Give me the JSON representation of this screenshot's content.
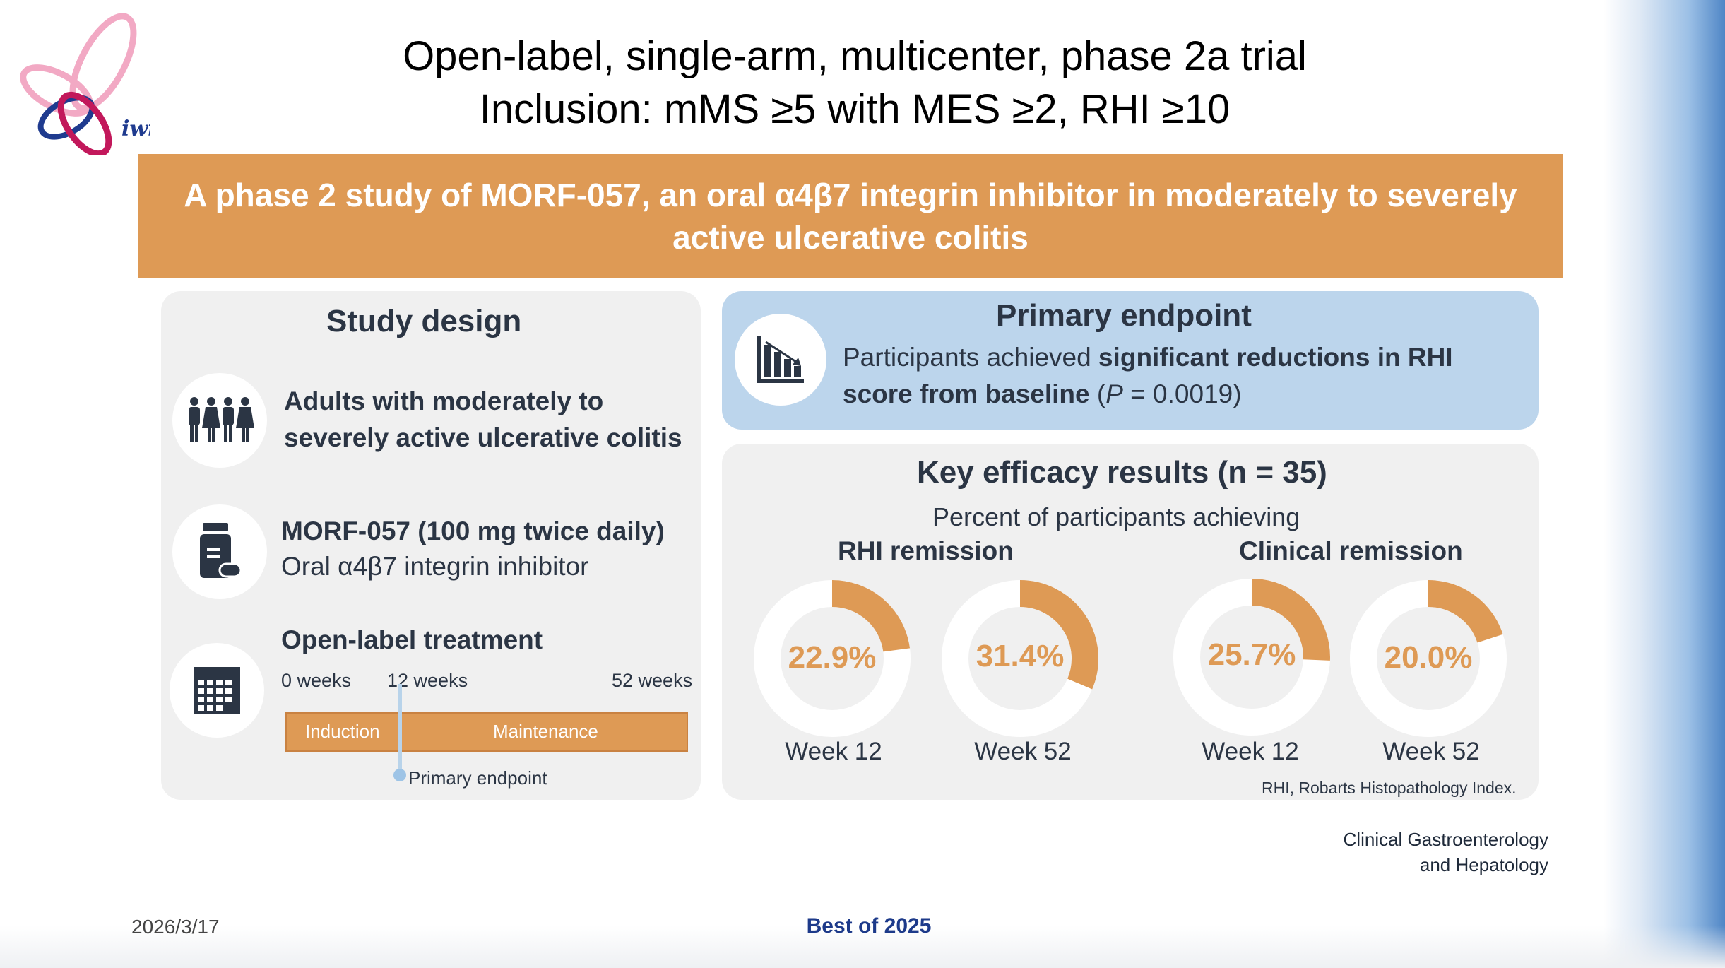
{
  "slide": {
    "title_line1": "Open-label, single-arm, multicenter, phase 2a trial",
    "title_line2": "Inclusion: mMS ≥5 with MES ≥2, RHI ≥10"
  },
  "banner": {
    "text": "A phase 2 study of MORF-057, an oral α4β7 integrin inhibitor in moderately to severely active ulcerative colitis"
  },
  "study_design": {
    "heading": "Study design",
    "population_line1": "Adults with moderately to",
    "population_line2": "severely active ulcerative colitis",
    "drug_line1": "MORF-057 (100 mg twice daily)",
    "drug_line2": "Oral α4β7 integrin inhibitor",
    "treatment_heading": "Open-label treatment",
    "timeline": {
      "week0": "0 weeks",
      "week12": "12 weeks",
      "week52": "52 weeks",
      "phase1": "Induction",
      "phase2": "Maintenance",
      "marker": "Primary endpoint"
    }
  },
  "primary_endpoint": {
    "heading": "Primary endpoint",
    "text_prefix": "Participants achieved ",
    "text_bold1": "significant reductions in RHI",
    "text_bold2": "score from baseline",
    "text_paren_open": " (",
    "p_label": "P",
    "p_value": " = 0.0019)"
  },
  "key_results": {
    "heading": "Key efficacy results (n = 35)",
    "subheading": "Percent of participants achieving",
    "group1": "RHI remission",
    "group2": "Clinical remission",
    "donuts": [
      {
        "percent": 22.9,
        "label": "22.9%",
        "week": "Week 12"
      },
      {
        "percent": 31.4,
        "label": "31.4%",
        "week": "Week 52"
      },
      {
        "percent": 25.7,
        "label": "25.7%",
        "week": "Week 12"
      },
      {
        "percent": 20.0,
        "label": "20.0%",
        "week": "Week 52"
      }
    ],
    "footnote": "RHI, Robarts Histopathology Index."
  },
  "source": {
    "line1": "Clinical Gastroenterology",
    "line2": "and Hepatology"
  },
  "footer": {
    "date": "2026/3/17",
    "center": "Best of 2025"
  },
  "logo_text": "iwi",
  "colors": {
    "accent_orange": "#de9a55",
    "primary_panel": "#bcd5ec",
    "panel_gray": "#f0f0f0",
    "footer_blue": "#1d3a8a"
  }
}
